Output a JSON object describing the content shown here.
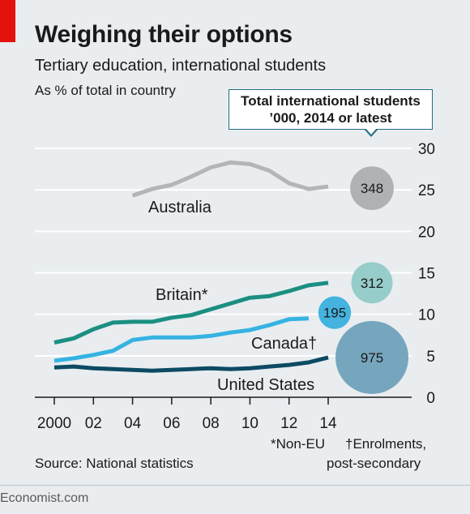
{
  "header": {
    "title": "Weighing their options",
    "subtitle": "Tertiary education, international students",
    "unit_label": "As % of total in country"
  },
  "callout": {
    "line1": "Total international students",
    "line2": "’000, 2014 or latest"
  },
  "footnotes": {
    "non_eu": "*Non-EU",
    "enrolments_line1": "†Enrolments,",
    "enrolments_line2": "post-secondary"
  },
  "source": "Source: National statistics",
  "brand": "Economist.com",
  "colors": {
    "australia": "#b3b5b8",
    "britain": "#1a8f82",
    "canada": "#35b3e2",
    "united_states": "#0d4a63",
    "bubble_australia": "#a9acaf",
    "bubble_britain": "#8ec9c5",
    "bubble_canada": "#35aedd",
    "bubble_united_states": "#6b9fb9",
    "accent_red": "#e3120b"
  },
  "chart_data": {
    "type": "line",
    "ylim": [
      0,
      30
    ],
    "xlim": [
      2000,
      2014
    ],
    "y_ticks": [
      "0",
      "5",
      "10",
      "15",
      "20",
      "25",
      "30"
    ],
    "y_tick_values": [
      0,
      5,
      10,
      15,
      20,
      25,
      30
    ],
    "x_ticks": [
      "2000",
      "02",
      "04",
      "06",
      "08",
      "10",
      "12",
      "14"
    ],
    "x_tick_values": [
      2000,
      2002,
      2004,
      2006,
      2008,
      2010,
      2012,
      2014
    ],
    "grid": true,
    "series": [
      {
        "name": "Australia",
        "key": "australia",
        "x": [
          2004,
          2005,
          2006,
          2007,
          2008,
          2009,
          2010,
          2011,
          2012,
          2013,
          2014
        ],
        "y": [
          24.3,
          25.1,
          25.6,
          26.6,
          27.7,
          28.3,
          28.1,
          27.3,
          25.8,
          25.1,
          25.4
        ],
        "bubble_value": "348",
        "bubble_raw": 348
      },
      {
        "name": "Britain*",
        "key": "britain",
        "x": [
          2000,
          2001,
          2002,
          2003,
          2004,
          2005,
          2006,
          2007,
          2008,
          2009,
          2010,
          2011,
          2012,
          2013,
          2014
        ],
        "y": [
          6.6,
          7.1,
          8.2,
          9.0,
          9.1,
          9.1,
          9.6,
          9.9,
          10.6,
          11.3,
          12.0,
          12.2,
          12.8,
          13.5,
          13.8
        ],
        "bubble_value": "312",
        "bubble_raw": 312
      },
      {
        "name": "Canada†",
        "key": "canada",
        "x": [
          2000,
          2001,
          2002,
          2003,
          2004,
          2005,
          2006,
          2007,
          2008,
          2009,
          2010,
          2011,
          2012,
          2013
        ],
        "y": [
          4.4,
          4.7,
          5.1,
          5.6,
          6.9,
          7.2,
          7.2,
          7.2,
          7.4,
          7.8,
          8.1,
          8.7,
          9.4,
          9.5
        ],
        "bubble_value": "195",
        "bubble_raw": 195
      },
      {
        "name": "United States",
        "key": "united_states",
        "x": [
          2000,
          2001,
          2002,
          2003,
          2004,
          2005,
          2006,
          2007,
          2008,
          2009,
          2010,
          2011,
          2012,
          2013,
          2014
        ],
        "y": [
          3.6,
          3.7,
          3.5,
          3.4,
          3.3,
          3.2,
          3.3,
          3.4,
          3.5,
          3.4,
          3.5,
          3.7,
          3.9,
          4.2,
          4.8
        ],
        "bubble_value": "975",
        "bubble_raw": 975
      }
    ]
  }
}
